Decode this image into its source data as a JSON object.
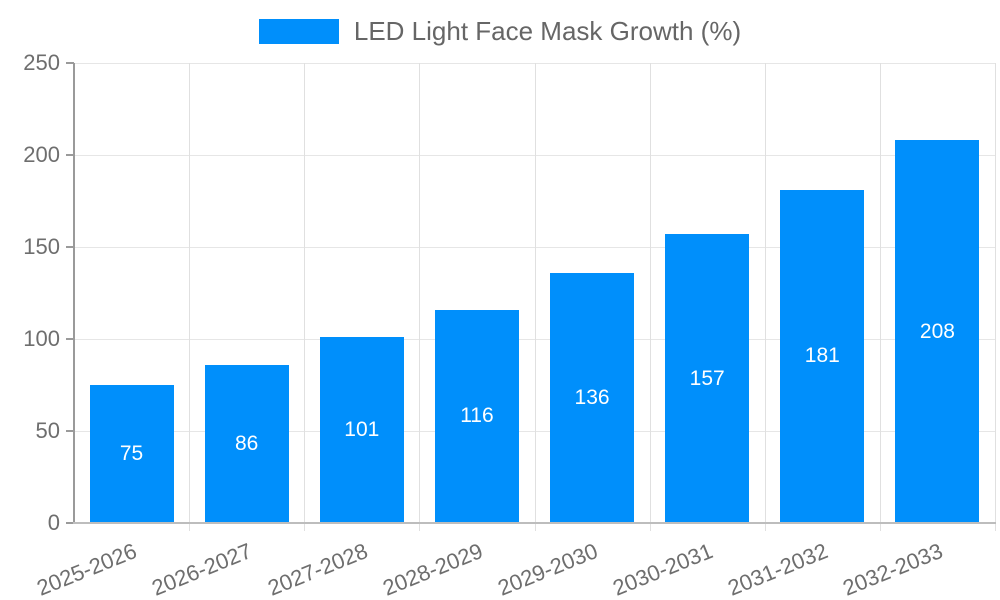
{
  "legend": {
    "label": "LED Light Face Mask Growth (%)"
  },
  "chart_data": {
    "type": "bar",
    "title": "LED Light Face Mask Growth (%)",
    "categories": [
      "2025-2026",
      "2026-2027",
      "2027-2028",
      "2028-2029",
      "2029-2030",
      "2030-2031",
      "2031-2032",
      "2032-2033"
    ],
    "values": [
      75,
      86,
      101,
      116,
      136,
      157,
      181,
      208
    ],
    "xlabel": "",
    "ylabel": "",
    "ylim": [
      0,
      250
    ],
    "yticks": [
      0,
      50,
      100,
      150,
      200,
      250
    ],
    "grid": true,
    "legend_position": "top",
    "bar_color": "#008FFB",
    "bar_label_color": "#FFFFFF"
  }
}
